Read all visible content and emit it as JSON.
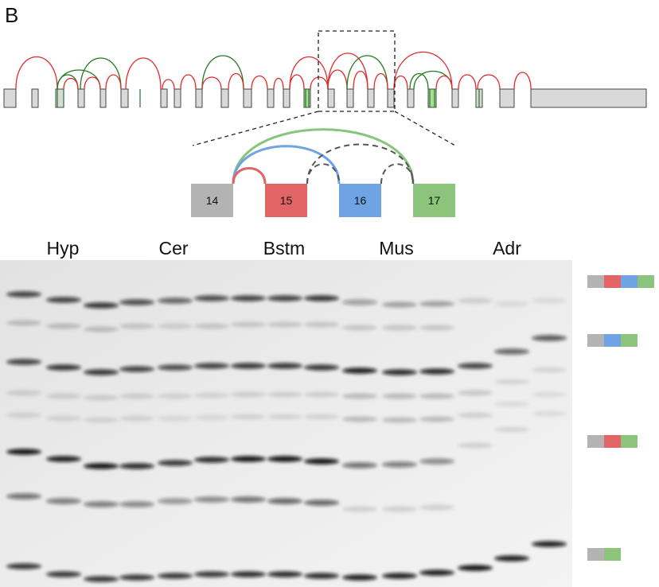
{
  "figure": {
    "panel_label": "B",
    "colors": {
      "exon_gray": "#c9c9c9",
      "exon_outline": "#555555",
      "red": "#e26464",
      "blue": "#6fa3e3",
      "green": "#8dc47c",
      "arc_red": "#e02a2a",
      "arc_green": "#1f7a1f",
      "dash_gray": "#555555"
    },
    "zoom_exons": [
      {
        "label": "14",
        "color": "#b3b3b3"
      },
      {
        "label": "15",
        "color": "#e26464"
      },
      {
        "label": "16",
        "color": "#6fa3e3"
      },
      {
        "label": "17",
        "color": "#8dc47c"
      }
    ],
    "lanes": [
      {
        "label": "Hyp"
      },
      {
        "label": "Cer"
      },
      {
        "label": "Bstm"
      },
      {
        "label": "Mus"
      },
      {
        "label": "Adr"
      }
    ],
    "isoform_legend": [
      {
        "name": "isoform-14-15-16-17",
        "segments": [
          "gray",
          "red",
          "blue",
          "green"
        ]
      },
      {
        "name": "isoform-14-16-17",
        "segments": [
          "gray",
          "blue",
          "green"
        ]
      },
      {
        "name": "isoform-14-15-17",
        "segments": [
          "gray",
          "red",
          "green"
        ]
      },
      {
        "name": "isoform-14-17",
        "segments": [
          "gray",
          "green"
        ]
      }
    ]
  }
}
